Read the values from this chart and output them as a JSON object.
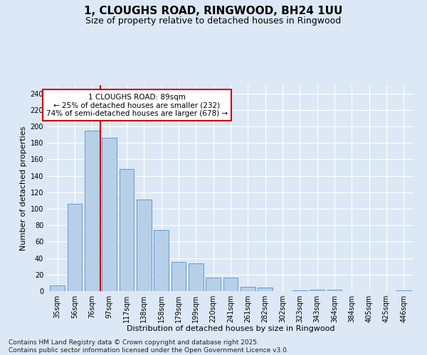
{
  "title": "1, CLOUGHS ROAD, RINGWOOD, BH24 1UU",
  "subtitle": "Size of property relative to detached houses in Ringwood",
  "xlabel": "Distribution of detached houses by size in Ringwood",
  "ylabel": "Number of detached properties",
  "categories": [
    "35sqm",
    "56sqm",
    "76sqm",
    "97sqm",
    "117sqm",
    "138sqm",
    "158sqm",
    "179sqm",
    "199sqm",
    "220sqm",
    "241sqm",
    "261sqm",
    "282sqm",
    "302sqm",
    "323sqm",
    "343sqm",
    "364sqm",
    "384sqm",
    "405sqm",
    "425sqm",
    "446sqm"
  ],
  "values": [
    7,
    106,
    195,
    186,
    148,
    111,
    74,
    35,
    34,
    16,
    16,
    5,
    4,
    0,
    1,
    2,
    2,
    0,
    0,
    0,
    1
  ],
  "bar_color": "#b8cfe8",
  "bar_edge_color": "#6699cc",
  "redline_x": 2.5,
  "property_label": "1 CLOUGHS ROAD: 89sqm",
  "annotation_line1": "← 25% of detached houses are smaller (232)",
  "annotation_line2": "74% of semi-detached houses are larger (678) →",
  "annotation_box_color": "#ffffff",
  "annotation_box_edge": "#cc0000",
  "redline_color": "#cc0000",
  "background_color": "#dce8f5",
  "plot_background": "#dce8f5",
  "grid_color": "#ffffff",
  "ylim": [
    0,
    250
  ],
  "yticks": [
    0,
    20,
    40,
    60,
    80,
    100,
    120,
    140,
    160,
    180,
    200,
    220,
    240
  ],
  "footer": "Contains HM Land Registry data © Crown copyright and database right 2025.\nContains public sector information licensed under the Open Government Licence v3.0.",
  "title_fontsize": 11,
  "subtitle_fontsize": 9,
  "axis_label_fontsize": 8,
  "tick_fontsize": 7,
  "annotation_fontsize": 7.5,
  "footer_fontsize": 6.5
}
